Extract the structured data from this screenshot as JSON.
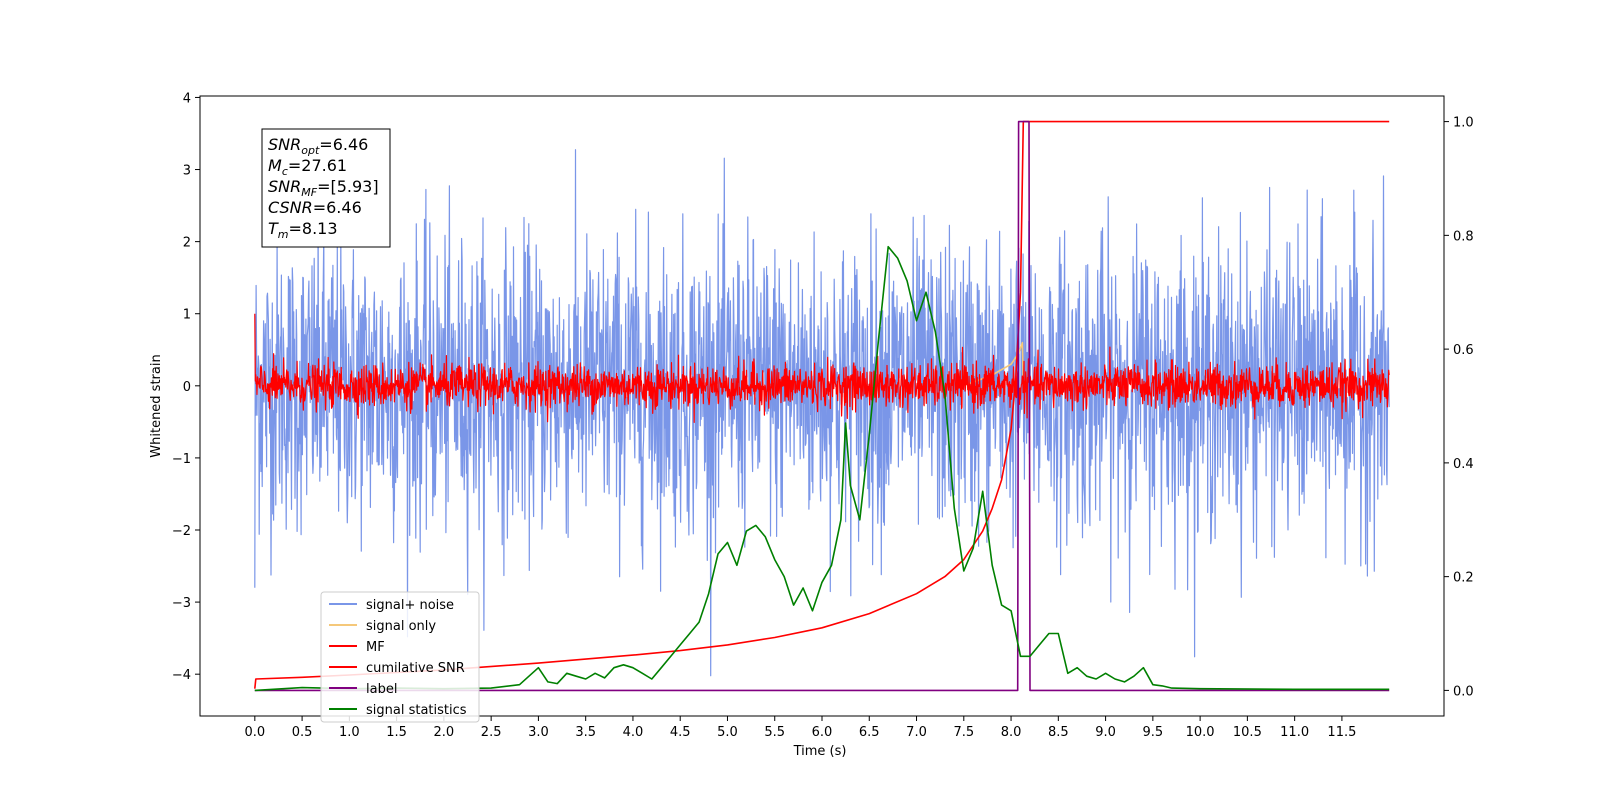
{
  "chart_data": {
    "type": "line",
    "xlabel": "Time (s)",
    "ylabel": "Whitened strain",
    "xlim": [
      -0.58,
      12.58
    ],
    "ylim": [
      -4.58,
      4.02
    ],
    "y2lim": [
      -0.045,
      1.045
    ],
    "xticks": [
      0.0,
      0.5,
      1.0,
      1.5,
      2.0,
      2.5,
      3.0,
      3.5,
      4.0,
      4.5,
      5.0,
      5.5,
      6.0,
      6.5,
      7.0,
      7.5,
      8.0,
      8.5,
      9.0,
      9.5,
      10.0,
      10.5,
      11.0,
      11.5
    ],
    "xtick_labels": [
      "0.0",
      "0.5",
      "1.0",
      "1.5",
      "2.0",
      "2.5",
      "3.0",
      "3.5",
      "4.0",
      "4.5",
      "5.0",
      "5.5",
      "6.0",
      "6.5",
      "7.0",
      "7.5",
      "8.0",
      "8.5",
      "9.0",
      "9.5",
      "10.0",
      "10.5",
      "11.0",
      "11.5"
    ],
    "yticks": [
      -4,
      -3,
      -2,
      -1,
      0,
      1,
      2,
      3,
      4
    ],
    "ytick_labels": [
      "−4",
      "−3",
      "−2",
      "−1",
      "0",
      "1",
      "2",
      "3",
      "4"
    ],
    "y2ticks": [
      0.0,
      0.2,
      0.4,
      0.6,
      0.8,
      1.0
    ],
    "y2tick_labels": [
      "0.0",
      "0.2",
      "0.4",
      "0.6",
      "0.8",
      "1.0"
    ],
    "legend_position": "lower-left",
    "grid": false,
    "annotation": {
      "lines": [
        {
          "sym": "SNR",
          "sub": "opt",
          "rest": "=6.46"
        },
        {
          "sym": "M",
          "sub": "c",
          "rest": "=27.61"
        },
        {
          "sym": "SNR",
          "sub": "MF",
          "rest": "=[5.93]"
        },
        {
          "sym": "CSNR",
          "sub": "",
          "rest": "=6.46"
        },
        {
          "sym": "T",
          "sub": "m",
          "rest": "=8.13"
        }
      ]
    },
    "series": [
      {
        "name": "signal+ noise",
        "axis": "left",
        "color": "#7a96e8",
        "description_of_values": "white noise",
        "amplitude_sigma": 1.0,
        "x_range": [
          0.0,
          12.0
        ]
      },
      {
        "name": "signal only",
        "axis": "left",
        "color": "#f5c87a",
        "x": [
          7.5,
          7.8,
          8.0,
          8.08,
          8.12,
          8.13
        ],
        "y": [
          0.0,
          0.15,
          0.3,
          0.45,
          0.6,
          0.0
        ]
      },
      {
        "name": "MF",
        "axis": "left",
        "color": "#ff0000",
        "description_of_values": "noise",
        "amplitude_sigma": 0.15,
        "x_range": [
          0.0,
          12.0
        ]
      },
      {
        "name": "cumilative SNR",
        "axis": "right",
        "color": "#ff0000",
        "x": [
          0.0,
          0.01,
          0.5,
          1.0,
          2.0,
          3.0,
          4.0,
          4.5,
          5.0,
          5.5,
          6.0,
          6.5,
          7.0,
          7.3,
          7.5,
          7.7,
          7.8,
          7.9,
          8.0,
          8.05,
          8.1,
          8.13,
          12.0
        ],
        "y": [
          0.003,
          0.02,
          0.023,
          0.027,
          0.036,
          0.048,
          0.062,
          0.07,
          0.08,
          0.093,
          0.11,
          0.135,
          0.17,
          0.2,
          0.23,
          0.28,
          0.32,
          0.37,
          0.46,
          0.55,
          0.7,
          1.0,
          1.0
        ]
      },
      {
        "name": "label",
        "axis": "right",
        "color": "#800080",
        "x": [
          0.0,
          8.07,
          8.08,
          8.19,
          8.2,
          12.0
        ],
        "y": [
          0.0,
          0.0,
          1.0,
          1.0,
          0.0,
          0.0
        ]
      },
      {
        "name": "signal statistics",
        "axis": "right",
        "color": "#008000",
        "x": [
          0.0,
          0.5,
          1.0,
          1.5,
          2.0,
          2.5,
          2.8,
          3.0,
          3.1,
          3.2,
          3.3,
          3.4,
          3.5,
          3.6,
          3.7,
          3.8,
          3.9,
          4.0,
          4.1,
          4.2,
          4.3,
          4.4,
          4.5,
          4.6,
          4.7,
          4.8,
          4.9,
          5.0,
          5.1,
          5.2,
          5.3,
          5.4,
          5.5,
          5.6,
          5.7,
          5.8,
          5.9,
          6.0,
          6.1,
          6.2,
          6.25,
          6.3,
          6.4,
          6.5,
          6.6,
          6.7,
          6.8,
          6.9,
          7.0,
          7.1,
          7.2,
          7.3,
          7.4,
          7.5,
          7.6,
          7.7,
          7.8,
          7.9,
          8.0,
          8.1,
          8.2,
          8.3,
          8.4,
          8.5,
          8.6,
          8.7,
          8.8,
          8.9,
          9.0,
          9.1,
          9.2,
          9.3,
          9.4,
          9.5,
          9.6,
          9.7,
          10.0,
          11.0,
          12.0
        ],
        "y": [
          0.0,
          0.005,
          0.003,
          0.004,
          0.003,
          0.004,
          0.01,
          0.04,
          0.015,
          0.012,
          0.03,
          0.025,
          0.02,
          0.03,
          0.022,
          0.04,
          0.045,
          0.04,
          0.03,
          0.02,
          0.04,
          0.06,
          0.08,
          0.1,
          0.12,
          0.17,
          0.24,
          0.26,
          0.22,
          0.28,
          0.29,
          0.27,
          0.23,
          0.2,
          0.15,
          0.18,
          0.14,
          0.19,
          0.22,
          0.3,
          0.47,
          0.36,
          0.3,
          0.45,
          0.62,
          0.78,
          0.76,
          0.72,
          0.65,
          0.7,
          0.63,
          0.52,
          0.32,
          0.21,
          0.25,
          0.35,
          0.22,
          0.15,
          0.14,
          0.06,
          0.06,
          0.08,
          0.1,
          0.1,
          0.03,
          0.04,
          0.025,
          0.02,
          0.03,
          0.02,
          0.015,
          0.025,
          0.04,
          0.01,
          0.008,
          0.004,
          0.003,
          0.002,
          0.002
        ]
      }
    ]
  }
}
